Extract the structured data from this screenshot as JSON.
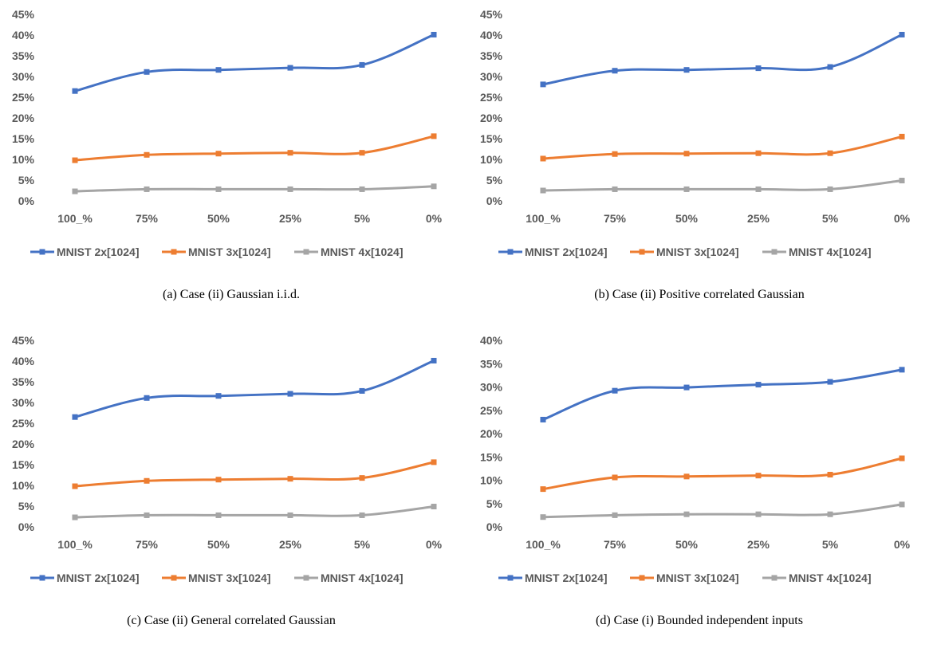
{
  "colors": {
    "series": [
      "#4472C4",
      "#ED7D31",
      "#A5A5A5"
    ],
    "tick_text": "#595959"
  },
  "chart_data": [
    {
      "type": "line",
      "caption": "(a) Case (ii) Gaussian i.i.d.",
      "categories": [
        "100_%",
        "75%",
        "50%",
        "25%",
        "5%",
        "0%"
      ],
      "yticks": [
        "0%",
        "5%",
        "10%",
        "15%",
        "20%",
        "25%",
        "30%",
        "35%",
        "40%",
        "45%"
      ],
      "ylim": [
        0,
        45
      ],
      "grid": false,
      "legend": "bottom",
      "series": [
        {
          "name": "MNIST 2x[1024]",
          "values": [
            26.5,
            31.1,
            31.6,
            32.1,
            32.8,
            40.1
          ]
        },
        {
          "name": "MNIST 3x[1024]",
          "values": [
            9.8,
            11.1,
            11.4,
            11.6,
            11.6,
            15.6
          ]
        },
        {
          "name": "MNIST 4x[1024]",
          "values": [
            2.3,
            2.8,
            2.8,
            2.8,
            2.8,
            3.5
          ]
        }
      ]
    },
    {
      "type": "line",
      "caption": "(b) Case (ii) Positive correlated Gaussian",
      "categories": [
        "100_%",
        "75%",
        "50%",
        "25%",
        "5%",
        "0%"
      ],
      "yticks": [
        "0%",
        "5%",
        "10%",
        "15%",
        "20%",
        "25%",
        "30%",
        "35%",
        "40%",
        "45%"
      ],
      "ylim": [
        0,
        45
      ],
      "grid": false,
      "legend": "bottom",
      "series": [
        {
          "name": "MNIST 2x[1024]",
          "values": [
            28.1,
            31.4,
            31.6,
            32.0,
            32.3,
            40.1
          ]
        },
        {
          "name": "MNIST 3x[1024]",
          "values": [
            10.2,
            11.3,
            11.4,
            11.5,
            11.5,
            15.5
          ]
        },
        {
          "name": "MNIST 4x[1024]",
          "values": [
            2.5,
            2.8,
            2.8,
            2.8,
            2.8,
            4.9
          ]
        }
      ]
    },
    {
      "type": "line",
      "caption": "(c) Case (ii) General correlated Gaussian",
      "categories": [
        "100_%",
        "75%",
        "50%",
        "25%",
        "5%",
        "0%"
      ],
      "yticks": [
        "0%",
        "5%",
        "10%",
        "15%",
        "20%",
        "25%",
        "30%",
        "35%",
        "40%",
        "45%"
      ],
      "ylim": [
        0,
        45
      ],
      "grid": false,
      "legend": "bottom",
      "series": [
        {
          "name": "MNIST 2x[1024]",
          "values": [
            26.5,
            31.1,
            31.6,
            32.1,
            32.8,
            40.1
          ]
        },
        {
          "name": "MNIST 3x[1024]",
          "values": [
            9.8,
            11.1,
            11.4,
            11.6,
            11.8,
            15.6
          ]
        },
        {
          "name": "MNIST 4x[1024]",
          "values": [
            2.3,
            2.8,
            2.8,
            2.8,
            2.8,
            4.9
          ]
        }
      ]
    },
    {
      "type": "line",
      "caption": "(d) Case (i) Bounded independent inputs",
      "categories": [
        "100_%",
        "75%",
        "50%",
        "25%",
        "5%",
        "0%"
      ],
      "yticks": [
        "0%",
        "5%",
        "10%",
        "15%",
        "20%",
        "25%",
        "30%",
        "35%",
        "40%"
      ],
      "ylim": [
        0,
        40
      ],
      "grid": false,
      "legend": "bottom",
      "series": [
        {
          "name": "MNIST 2x[1024]",
          "values": [
            23.0,
            29.2,
            29.9,
            30.5,
            31.1,
            33.7
          ]
        },
        {
          "name": "MNIST 3x[1024]",
          "values": [
            8.1,
            10.6,
            10.8,
            11.0,
            11.2,
            14.7
          ]
        },
        {
          "name": "MNIST 4x[1024]",
          "values": [
            2.1,
            2.5,
            2.7,
            2.7,
            2.7,
            4.8
          ]
        }
      ]
    }
  ]
}
